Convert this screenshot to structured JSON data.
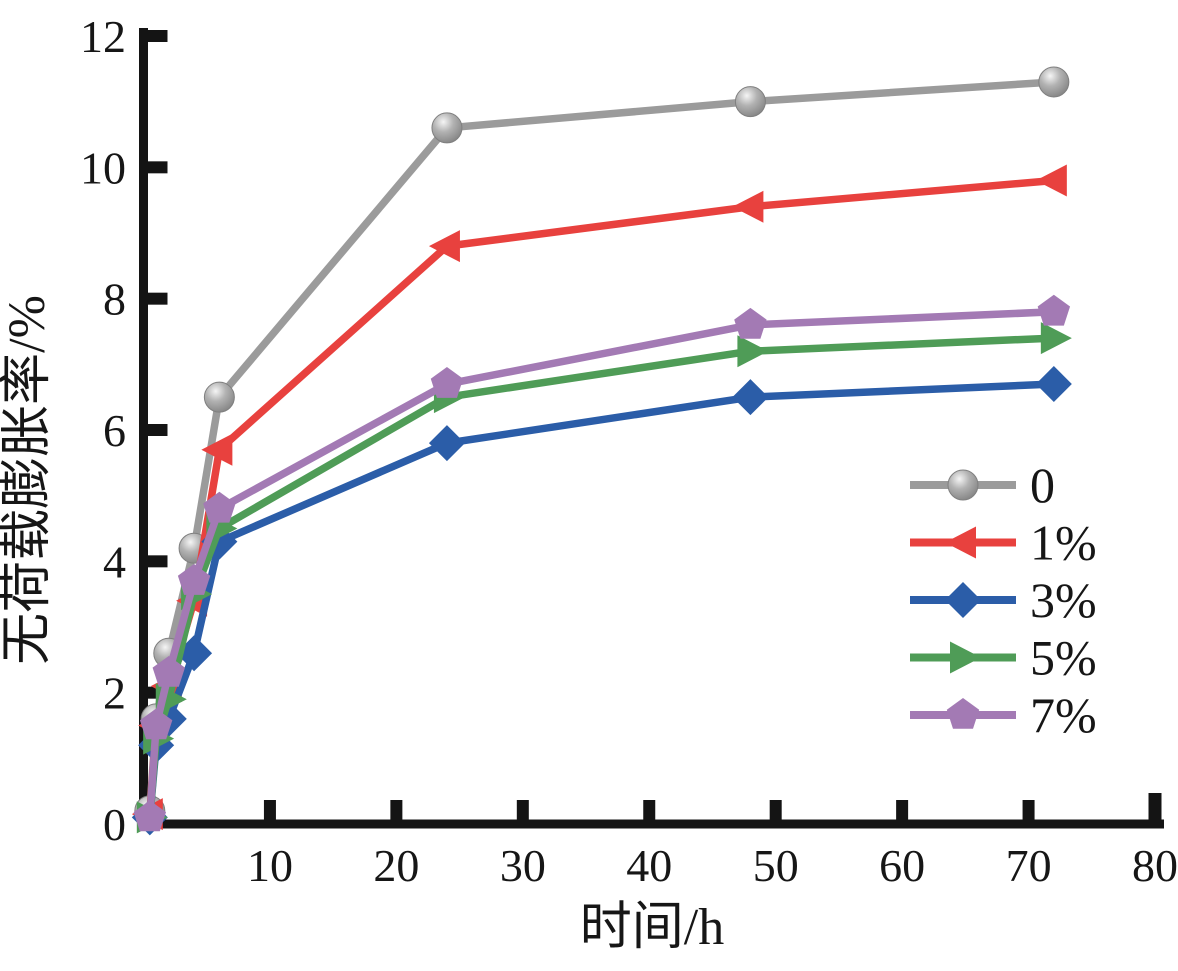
{
  "chart_data": {
    "type": "line",
    "title": "",
    "xlabel": "时间/h",
    "ylabel": "无荷载膨胀率/%",
    "xlim": [
      0,
      80
    ],
    "ylim": [
      0,
      12
    ],
    "x_ticks": [
      10,
      20,
      30,
      40,
      50,
      60,
      70,
      80
    ],
    "y_ticks": [
      0,
      2,
      4,
      6,
      8,
      10,
      12
    ],
    "grid": false,
    "legend_position": "right-middle",
    "axis_color": "#141414",
    "text_color": "#161616",
    "background_color": "#ffffff",
    "x": [
      0.5,
      1,
      2,
      4,
      6,
      24,
      48,
      72
    ],
    "series": [
      {
        "name": "0",
        "color": "#9b9b9b",
        "marker": "sphere",
        "values": [
          0.2,
          1.6,
          2.6,
          4.2,
          6.5,
          10.6,
          11.0,
          11.3
        ]
      },
      {
        "name": "1%",
        "color": "#e8413e",
        "marker": "triangle-left",
        "values": [
          0.15,
          1.5,
          2.1,
          3.4,
          5.7,
          8.8,
          9.4,
          9.8
        ]
      },
      {
        "name": "3%",
        "color": "#2b5da8",
        "marker": "diamond",
        "values": [
          0.1,
          1.2,
          1.6,
          2.6,
          4.3,
          5.8,
          6.5,
          6.7
        ]
      },
      {
        "name": "5%",
        "color": "#4f9c57",
        "marker": "triangle-right",
        "values": [
          0.1,
          1.3,
          1.9,
          3.5,
          4.5,
          6.5,
          7.2,
          7.4
        ]
      },
      {
        "name": "7%",
        "color": "#a37ab4",
        "marker": "pentagon",
        "values": [
          0.1,
          1.5,
          2.3,
          3.7,
          4.8,
          6.7,
          7.6,
          7.8
        ]
      }
    ]
  }
}
